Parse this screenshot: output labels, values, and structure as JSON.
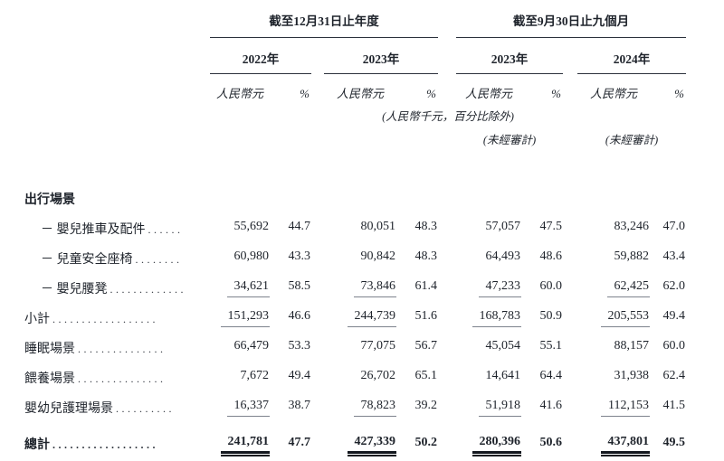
{
  "table": {
    "col_groups": [
      {
        "title": "截至12月31日止年度",
        "years": [
          "2022年",
          "2023年"
        ]
      },
      {
        "title": "截至9月30日止九個月",
        "years": [
          "2023年",
          "2024年"
        ]
      }
    ],
    "unit_currency": "人民幣元",
    "unit_percent": "%",
    "note": "(人民幣千元，百分比除外)",
    "unaudited": "(未經審計)",
    "rows": [
      {
        "label": "出行場景",
        "dots": "",
        "style": "section",
        "rule": "none",
        "values": [
          "",
          "",
          "",
          "",
          "",
          "",
          "",
          ""
        ]
      },
      {
        "label": "－ 嬰兒推車及配件",
        "dots": "......",
        "style": "item",
        "rule": "none",
        "values": [
          "55,692",
          "44.7",
          "80,051",
          "48.3",
          "57,057",
          "47.5",
          "83,246",
          "47.0"
        ]
      },
      {
        "label": "－ 兒童安全座椅",
        "dots": "........",
        "style": "item",
        "rule": "none",
        "values": [
          "60,980",
          "43.3",
          "90,842",
          "48.3",
          "64,493",
          "48.6",
          "59,882",
          "43.4"
        ]
      },
      {
        "label": "－ 嬰兒腰凳",
        "dots": ".............",
        "style": "item",
        "rule": "single",
        "values": [
          "34,621",
          "58.5",
          "73,846",
          "61.4",
          "47,233",
          "60.0",
          "62,425",
          "62.0"
        ]
      },
      {
        "label": "小計",
        "dots": "..................",
        "style": "normal",
        "rule": "single",
        "values": [
          "151,293",
          "46.6",
          "244,739",
          "51.6",
          "168,783",
          "50.9",
          "205,553",
          "49.4"
        ]
      },
      {
        "label": "睡眠場景",
        "dots": "...............",
        "style": "normal",
        "rule": "none",
        "values": [
          "66,479",
          "53.3",
          "77,075",
          "56.7",
          "45,054",
          "55.1",
          "88,157",
          "60.0"
        ]
      },
      {
        "label": "餵養場景",
        "dots": "...............",
        "style": "normal",
        "rule": "none",
        "values": [
          "7,672",
          "49.4",
          "26,702",
          "65.1",
          "14,641",
          "64.4",
          "31,938",
          "62.4"
        ]
      },
      {
        "label": "嬰幼兒護理場景",
        "dots": "..........",
        "style": "normal",
        "rule": "single",
        "values": [
          "16,337",
          "38.7",
          "78,823",
          "39.2",
          "51,918",
          "41.6",
          "112,153",
          "41.5"
        ]
      },
      {
        "label": "總計",
        "dots": "..................",
        "style": "total",
        "rule": "double",
        "values": [
          "241,781",
          "47.7",
          "427,339",
          "50.2",
          "280,396",
          "50.6",
          "437,801",
          "49.5"
        ]
      }
    ]
  }
}
